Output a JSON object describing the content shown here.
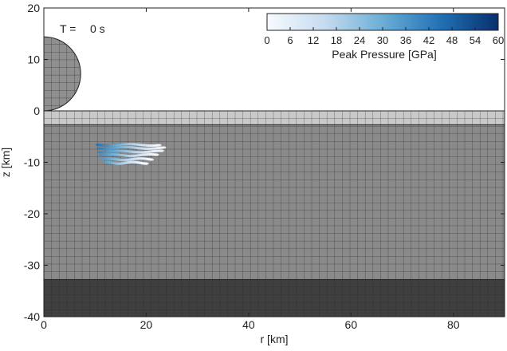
{
  "time_label": "T =",
  "time_value": "0 s",
  "colorbar": {
    "label": "Peak Pressure [GPa]",
    "ticks": [
      "0",
      "6",
      "12",
      "18",
      "24",
      "30",
      "36",
      "42",
      "48",
      "54",
      "60"
    ],
    "range": [
      0,
      60
    ],
    "color_low": "#f2f7ff",
    "color_high": "#0a2a73"
  },
  "chart_data": {
    "type": "heatmap",
    "title": "",
    "xlabel": "r [km]",
    "ylabel": "z [km]",
    "xlim": [
      0,
      90
    ],
    "ylim": [
      -40,
      20
    ],
    "xticks": [
      "0",
      "20",
      "40",
      "60",
      "80"
    ],
    "yticks": [
      "20",
      "10",
      "0",
      "-10",
      "-20",
      "-30",
      "-40"
    ],
    "grid": true,
    "layers": [
      {
        "name": "upper layer",
        "z_top": 0,
        "z_bottom": -2.7,
        "color": "#c9c9c9"
      },
      {
        "name": "middle layer",
        "z_top": -2.7,
        "z_bottom": -32.8,
        "color": "#8a8a8a"
      },
      {
        "name": "lower layer",
        "z_top": -32.8,
        "z_bottom": -40,
        "color": "#3f3f3f"
      }
    ],
    "impactor": {
      "center_r": 0,
      "center_z": 7.2,
      "radius": 7.2,
      "color": "#8f8f8f"
    },
    "pressure_region": {
      "r_range": [
        10.5,
        23.5
      ],
      "z_range": [
        -11,
        -6.5
      ],
      "peak_max": 45
    }
  }
}
